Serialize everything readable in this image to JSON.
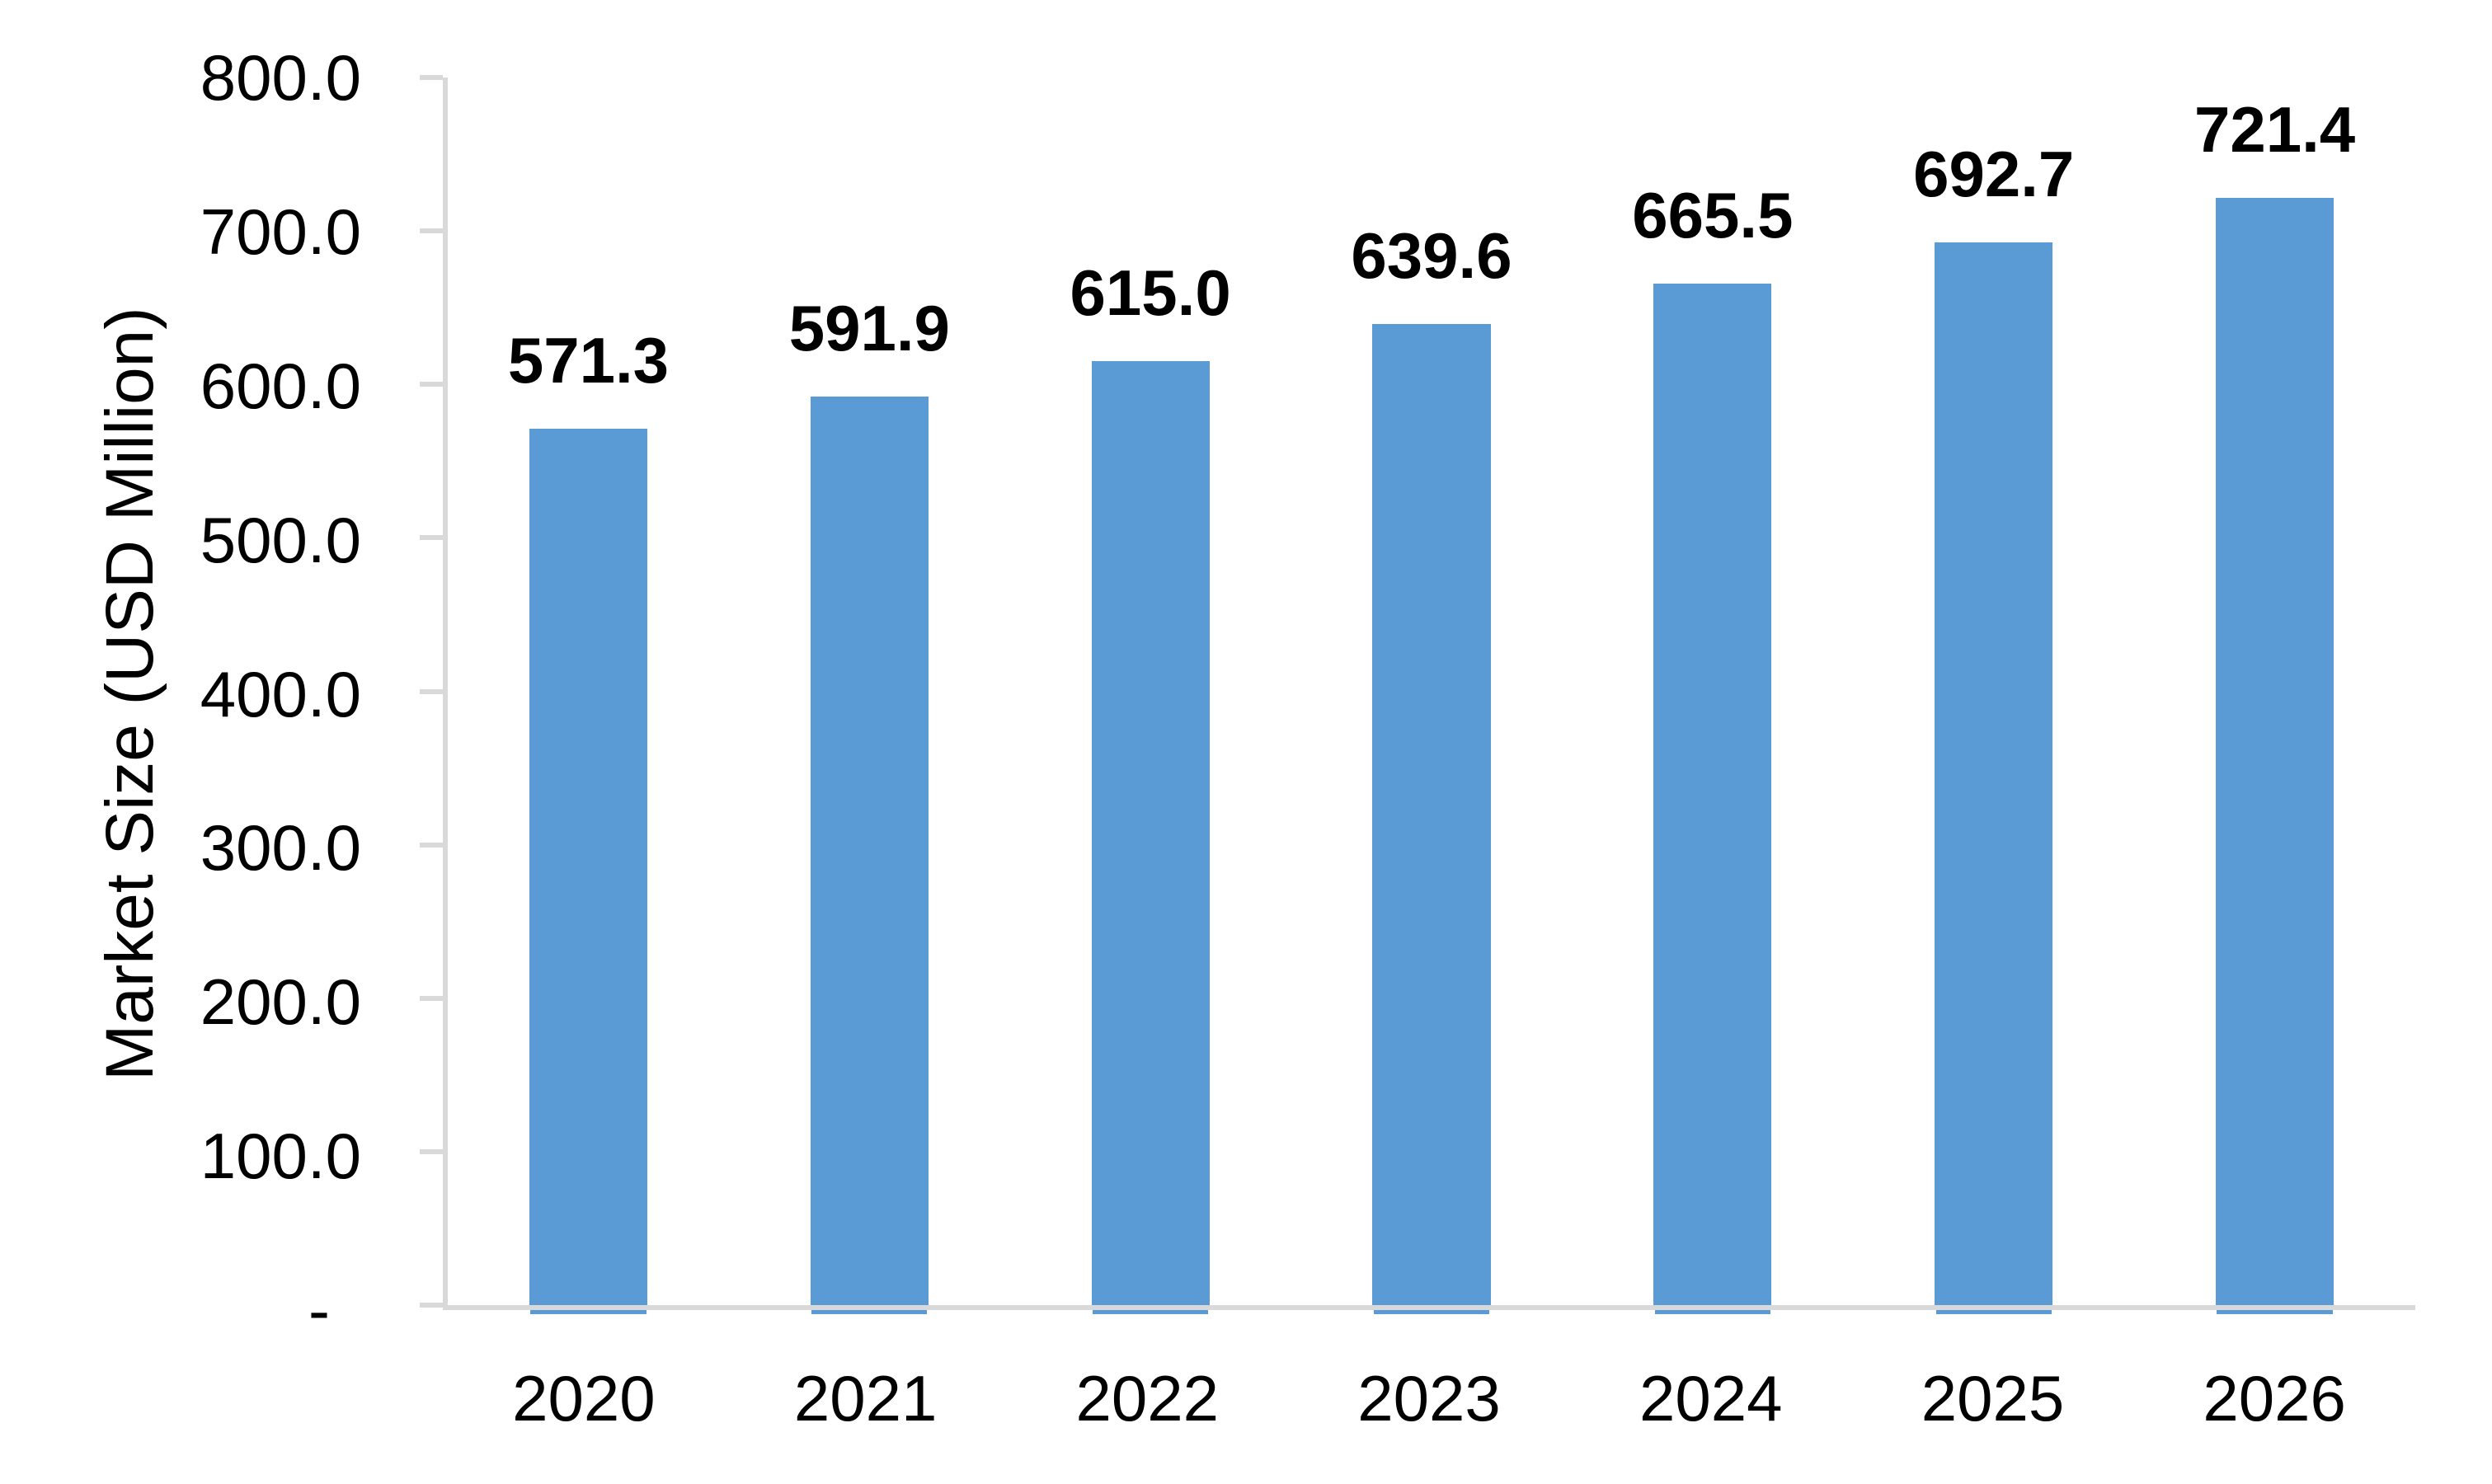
{
  "chart_data": {
    "type": "bar",
    "categories": [
      "2020",
      "2021",
      "2022",
      "2023",
      "2024",
      "2025",
      "2026"
    ],
    "values": [
      571.3,
      591.9,
      615.0,
      639.6,
      665.5,
      692.7,
      721.4
    ],
    "value_labels": [
      "571.3",
      "591.9",
      "615.0",
      "639.6",
      "665.5",
      "692.7",
      "721.4"
    ],
    "xlabel": "",
    "ylabel": "Market Size (USD Million)",
    "ylim": [
      0,
      800
    ],
    "yticks": [
      {
        "value": 800,
        "label": "800.0"
      },
      {
        "value": 700,
        "label": "700.0"
      },
      {
        "value": 600,
        "label": "600.0"
      },
      {
        "value": 500,
        "label": "500.0"
      },
      {
        "value": 400,
        "label": "400.0"
      },
      {
        "value": 300,
        "label": "300.0"
      },
      {
        "value": 200,
        "label": "200.0"
      },
      {
        "value": 100,
        "label": "100.0"
      },
      {
        "value": 0,
        "label": "-"
      }
    ],
    "legend_position": "none",
    "grid": "off",
    "colors": {
      "bar": "#5b9bd5",
      "axis": "#d9d9d9",
      "text": "#000000",
      "background": "#ffffff"
    }
  }
}
